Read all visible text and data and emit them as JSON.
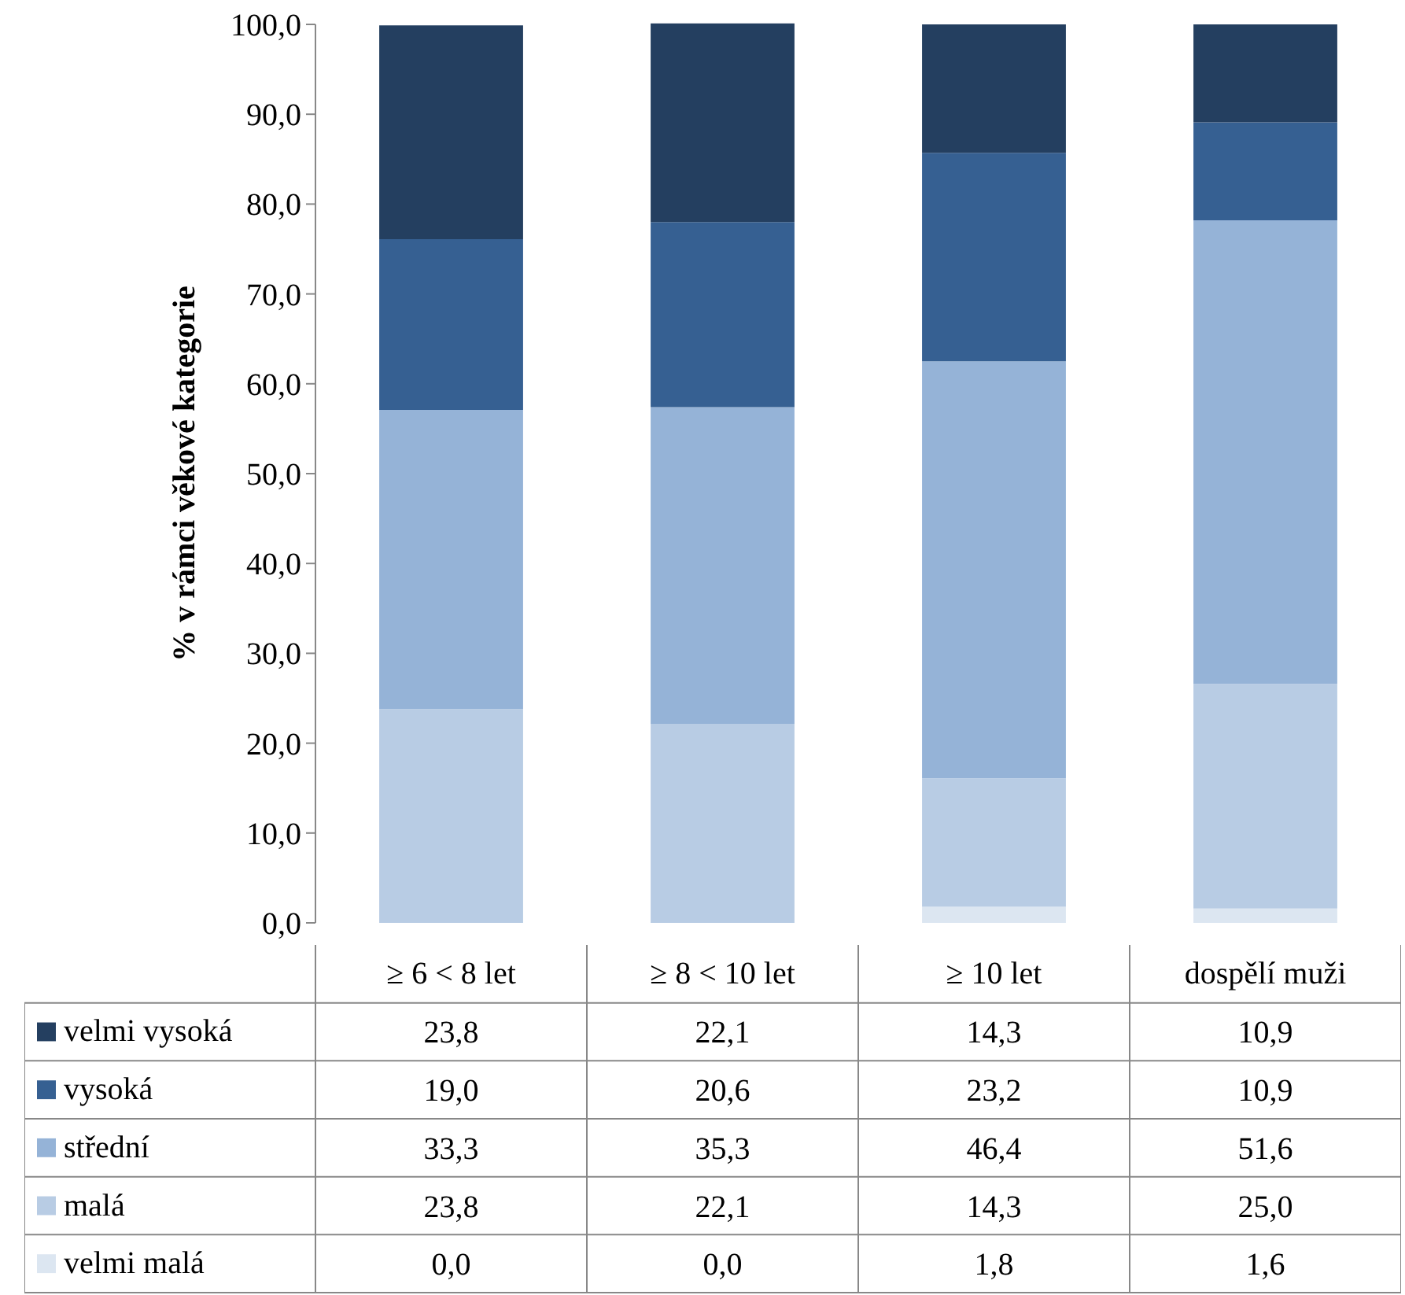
{
  "chart_data": {
    "type": "bar",
    "stacked": true,
    "ylabel": "% v rámci věkové kategorie",
    "categories": [
      "≥ 6 < 8 let",
      "≥ 8 < 10 let",
      "≥ 10 let",
      "dospělí muži"
    ],
    "series": [
      {
        "name": "velmi malá",
        "color": "#dce6f1",
        "values": [
          0.0,
          0.0,
          1.8,
          1.6
        ],
        "value_labels": [
          "0,0",
          "0,0",
          "1,8",
          "1,6"
        ]
      },
      {
        "name": "malá",
        "color": "#b8cce4",
        "values": [
          23.8,
          22.1,
          14.3,
          25.0
        ],
        "value_labels": [
          "23,8",
          "22,1",
          "14,3",
          "25,0"
        ]
      },
      {
        "name": "střední",
        "color": "#95b3d7",
        "values": [
          33.3,
          35.3,
          46.4,
          51.6
        ],
        "value_labels": [
          "33,3",
          "35,3",
          "46,4",
          "51,6"
        ]
      },
      {
        "name": "vysoká",
        "color": "#366092",
        "values": [
          19.0,
          20.6,
          23.2,
          10.9
        ],
        "value_labels": [
          "19,0",
          "20,6",
          "23,2",
          "10,9"
        ]
      },
      {
        "name": "velmi vysoká",
        "color": "#243f60",
        "values": [
          23.8,
          22.1,
          14.3,
          10.9
        ],
        "value_labels": [
          "23,8",
          "22,1",
          "14,3",
          "10,9"
        ]
      }
    ],
    "ylim": [
      0,
      100
    ],
    "yticks": [
      {
        "value": 0,
        "label": "0,0"
      },
      {
        "value": 10,
        "label": "10,0"
      },
      {
        "value": 20,
        "label": "20,0"
      },
      {
        "value": 30,
        "label": "30,0"
      },
      {
        "value": 40,
        "label": "40,0"
      },
      {
        "value": 50,
        "label": "50,0"
      },
      {
        "value": 60,
        "label": "60,0"
      },
      {
        "value": 70,
        "label": "70,0"
      },
      {
        "value": 80,
        "label": "80,0"
      },
      {
        "value": 90,
        "label": "90,0"
      },
      {
        "value": 100,
        "label": "100,0"
      }
    ],
    "grid": false,
    "legend": "bottom"
  }
}
